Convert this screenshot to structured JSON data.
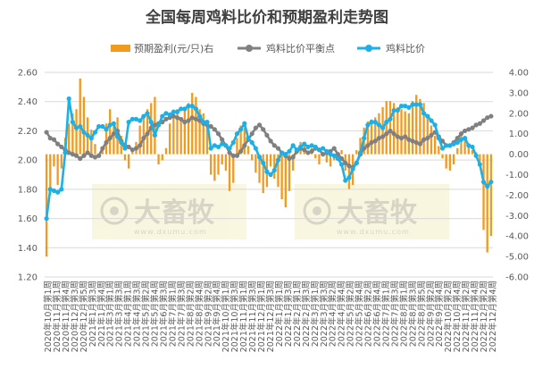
{
  "chart_data": {
    "type": "bar+line",
    "title": "全国每周鸡料比价和预期盈利走势图",
    "legend": [
      "预期盈利(元/只)右",
      "鸡料比价平衡点",
      "鸡料比价"
    ],
    "legend_position": "top",
    "watermark": {
      "brand": "大畜牧",
      "site": "www.dxumu.com"
    },
    "colors": {
      "profit": "#f29a1d",
      "balance": "#808080",
      "ratio": "#1cb0e6",
      "grid": "#d9d9d9"
    },
    "y_left": {
      "min": 1.2,
      "max": 2.6,
      "step": 0.2,
      "ticks": [
        "1.20",
        "1.40",
        "1.60",
        "1.80",
        "2.00",
        "2.20",
        "2.40",
        "2.60"
      ]
    },
    "y_right": {
      "min": -6,
      "max": 4,
      "step": 1,
      "ticks": [
        "-6.00",
        "-5.00",
        "-4.00",
        "-3.00",
        "-2.00",
        "-1.00",
        "0.00",
        "1.00",
        "2.00",
        "3.00",
        "4.00"
      ]
    },
    "x_labels": [
      "2020年10月第1周",
      "2020年11月第1周",
      "2020年11月第4周",
      "2020年12月第3周",
      "2020年12月第5周",
      "2021年1月第3周",
      "2021年1月第4周",
      "2021年3月第1周",
      "2021年3月第3周",
      "2021年4月第1周",
      "2021年4月第3周",
      "2021年5月第2周",
      "2021年5月第4周",
      "2021年6月第3周",
      "2021年7月第1周",
      "2021年7月第3周",
      "2021年8月第2周",
      "2021年8月第4周",
      "2021年9月第2周",
      "2021年9月第4周",
      "2021年10月第1周",
      "2021年10月第3周",
      "2021年11月第1周",
      "2021年11月第3周",
      "2021年12月第1周",
      "2021年12月第3周",
      "2022年1月第1周",
      "2022年1月第3周",
      "2022年2月第1周",
      "2022年2月第3周",
      "2022年3月第1周",
      "2022年3月第3周",
      "2022年4月第2周",
      "2022年4月第4周",
      "2022年5月第2周",
      "2022年5月第4周",
      "2022年6月第2周",
      "2022年6月第4周",
      "2022年7月第1周",
      "2022年7月第3周",
      "2022年8月第1周",
      "2022年8月第3周",
      "2022年8月第5周",
      "2022年9月第2周",
      "2022年9月第4周",
      "2022年10月第2周",
      "2022年10月第4周",
      "2022年11月第2周",
      "2022年11月第4周",
      "2022年12月第2周",
      "2022年12月第4周"
    ],
    "n_points": 120,
    "profit": [
      -5,
      -2,
      -0.6,
      -1.5,
      -0.7,
      0.8,
      1.5,
      2,
      2.2,
      3.7,
      2.8,
      1.8,
      1.2,
      0.5,
      -0.1,
      0.3,
      1.5,
      2.2,
      1.5,
      1.8,
      0.9,
      -0.3,
      -0.7,
      0.3,
      0.6,
      1.4,
      1.8,
      2.2,
      2.5,
      2.8,
      -0.5,
      -0.3,
      0.3,
      1.5,
      2.1,
      2.2,
      1.8,
      2.2,
      2.5,
      3.0,
      2.8,
      2.2,
      2.0,
      1.6,
      -1,
      -1.3,
      -1.0,
      -0.5,
      -0.8,
      -1.8,
      -1.4,
      0.8,
      1.4,
      1.3,
      0.4,
      -0.3,
      -0.9,
      -1.4,
      -1.9,
      -1.6,
      -0.6,
      -1.2,
      -1.6,
      -2.2,
      -2.6,
      -1.8,
      -0.8,
      0.2,
      0.6,
      0.4,
      0.1,
      0.3,
      -0.2,
      -0.5,
      -0.1,
      -0.4,
      -0.6,
      -0.3,
      0,
      0.2,
      -0.8,
      -1.7,
      -1.5,
      0.2,
      0.8,
      1.3,
      1.6,
      1.7,
      1.8,
      2.0,
      2.3,
      2.6,
      2.6,
      2.5,
      2.3,
      2.2,
      2.1,
      2.0,
      2.6,
      2.9,
      2.7,
      2.5,
      1.9,
      1.4,
      0.9,
      0.4,
      -0.2,
      -0.7,
      -0.8,
      -0.5,
      0.3,
      0.9,
      0.8,
      0.5,
      0.2,
      0.1,
      -0.4,
      -3.7,
      -4.8,
      -4.0
    ],
    "balance": [
      2.19,
      2.15,
      2.14,
      2.11,
      2.09,
      2.07,
      2.05,
      2.04,
      2.03,
      2.01,
      2.03,
      2.05,
      2.03,
      2.02,
      2.03,
      2.08,
      2.12,
      2.15,
      2.18,
      2.2,
      2.13,
      2.1,
      2.09,
      2.07,
      2.08,
      2.1,
      2.15,
      2.18,
      2.22,
      2.24,
      2.25,
      2.26,
      2.28,
      2.29,
      2.3,
      2.29,
      2.28,
      2.26,
      2.27,
      2.29,
      2.28,
      2.27,
      2.25,
      2.24,
      2.23,
      2.21,
      2.18,
      2.14,
      2.1,
      2.05,
      2.03,
      2.03,
      2.06,
      2.1,
      2.14,
      2.18,
      2.22,
      2.24,
      2.21,
      2.17,
      2.13,
      2.1,
      2.08,
      2.05,
      2.03,
      2.01,
      2.02,
      2.06,
      2.08,
      2.07,
      2.05,
      2.06,
      2.08,
      2.07,
      2.04,
      2.05,
      2.06,
      2.08,
      2.04,
      2.01,
      1.98,
      1.96,
      1.95,
      1.98,
      2.04,
      2.08,
      2.1,
      2.12,
      2.13,
      2.15,
      2.16,
      2.18,
      2.2,
      2.18,
      2.16,
      2.15,
      2.16,
      2.14,
      2.13,
      2.12,
      2.11,
      2.14,
      2.15,
      2.17,
      2.19,
      2.16,
      2.13,
      2.1,
      2.1,
      2.12,
      2.15,
      2.18,
      2.2,
      2.21,
      2.22,
      2.24,
      2.25,
      2.27,
      2.29,
      2.3
    ],
    "ratio": [
      1.6,
      1.8,
      1.79,
      1.78,
      1.8,
      2.05,
      2.42,
      2.26,
      2.22,
      2.23,
      2.19,
      2.17,
      2.15,
      2.19,
      2.23,
      2.23,
      2.21,
      2.24,
      2.25,
      2.16,
      2.12,
      2.08,
      2.26,
      2.28,
      2.28,
      2.27,
      2.3,
      2.32,
      2.26,
      2.17,
      2.24,
      2.3,
      2.32,
      2.31,
      2.33,
      2.33,
      2.35,
      2.35,
      2.37,
      2.37,
      2.35,
      2.3,
      2.26,
      2.26,
      2.08,
      2.1,
      2.09,
      2.11,
      2.1,
      2.08,
      2.12,
      2.18,
      2.21,
      2.25,
      2.15,
      2.12,
      2.08,
      2.02,
      1.98,
      1.92,
      1.9,
      1.93,
      2.0,
      2.05,
      2.04,
      2.06,
      2.1,
      2.07,
      2.09,
      2.11,
      2.09,
      2.1,
      2.09,
      2.07,
      2.08,
      2.06,
      2.04,
      2.03,
      2.01,
      1.97,
      1.86,
      1.88,
      1.94,
      1.98,
      2.05,
      2.15,
      2.24,
      2.26,
      2.26,
      2.24,
      2.22,
      2.26,
      2.28,
      2.34,
      2.34,
      2.37,
      2.37,
      2.36,
      2.38,
      2.38,
      2.38,
      2.32,
      2.3,
      2.27,
      2.24,
      2.15,
      2.08,
      2.1,
      2.1,
      2.11,
      2.12,
      2.14,
      2.15,
      2.1,
      2.09,
      2.03,
      1.97,
      1.85,
      1.82,
      1.85
    ]
  }
}
